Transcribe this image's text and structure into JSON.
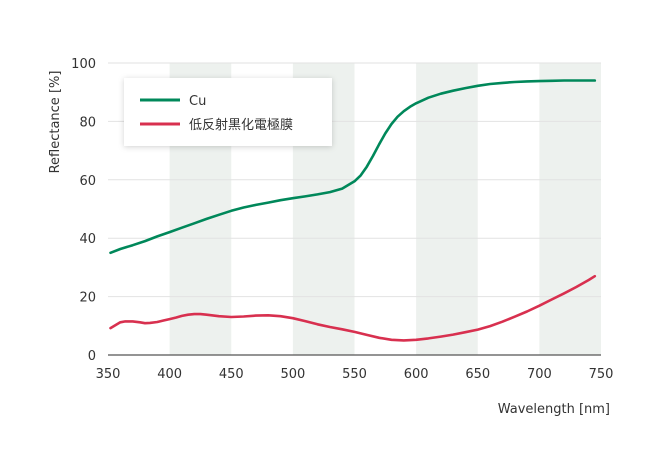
{
  "chart_data": {
    "type": "line",
    "title": "",
    "xlabel": "Wavelength [nm]",
    "ylabel": "Reflectance [%]",
    "xlim": [
      350,
      750
    ],
    "ylim": [
      0,
      100
    ],
    "x_ticks": [
      "350",
      "400",
      "450",
      "500",
      "550",
      "600",
      "650",
      "700",
      "750"
    ],
    "y_ticks": [
      "0",
      "20",
      "40",
      "60",
      "80",
      "100"
    ],
    "grid": true,
    "shaded_bands": [
      [
        400,
        450
      ],
      [
        500,
        550
      ],
      [
        600,
        650
      ],
      [
        700,
        750
      ]
    ],
    "legend_position": "top-left",
    "series": [
      {
        "name": "Cu",
        "color": "#00885a",
        "x": [
          352,
          360,
          370,
          380,
          390,
          400,
          410,
          420,
          430,
          440,
          450,
          460,
          470,
          480,
          490,
          500,
          510,
          520,
          530,
          540,
          550,
          555,
          560,
          565,
          570,
          575,
          580,
          585,
          590,
          595,
          600,
          610,
          620,
          630,
          640,
          650,
          660,
          670,
          680,
          690,
          700,
          710,
          720,
          730,
          740,
          745
        ],
        "y": [
          35,
          36.3,
          37.6,
          39,
          40.6,
          42.1,
          43.6,
          45.1,
          46.6,
          48,
          49.4,
          50.5,
          51.4,
          52.2,
          53,
          53.7,
          54.3,
          55,
          55.8,
          57,
          59.5,
          61.5,
          64.5,
          68.2,
          72.2,
          75.9,
          79.1,
          81.6,
          83.5,
          85,
          86.2,
          88.1,
          89.5,
          90.5,
          91.4,
          92.2,
          92.8,
          93.2,
          93.5,
          93.7,
          93.8,
          93.9,
          94,
          94,
          94,
          94
        ]
      },
      {
        "name": "低反射黒化電極膜",
        "color": "#d8304f",
        "x": [
          352,
          360,
          364,
          370,
          376,
          380,
          384,
          390,
          395,
          400,
          405,
          410,
          415,
          420,
          425,
          430,
          440,
          450,
          460,
          470,
          480,
          490,
          500,
          510,
          520,
          530,
          540,
          550,
          560,
          570,
          580,
          590,
          600,
          610,
          620,
          630,
          640,
          650,
          660,
          670,
          680,
          690,
          700,
          710,
          720,
          730,
          740,
          745
        ],
        "y": [
          9.2,
          11.2,
          11.5,
          11.5,
          11.2,
          10.9,
          11.0,
          11.3,
          11.8,
          12.3,
          12.8,
          13.4,
          13.8,
          14.0,
          14.0,
          13.8,
          13.3,
          13.0,
          13.2,
          13.5,
          13.6,
          13.3,
          12.6,
          11.6,
          10.5,
          9.6,
          8.8,
          7.9,
          6.9,
          5.9,
          5.2,
          5.0,
          5.2,
          5.7,
          6.3,
          7.0,
          7.8,
          8.7,
          9.9,
          11.4,
          13.1,
          14.9,
          16.9,
          19.0,
          21.1,
          23.3,
          25.7,
          27.0
        ]
      }
    ]
  }
}
